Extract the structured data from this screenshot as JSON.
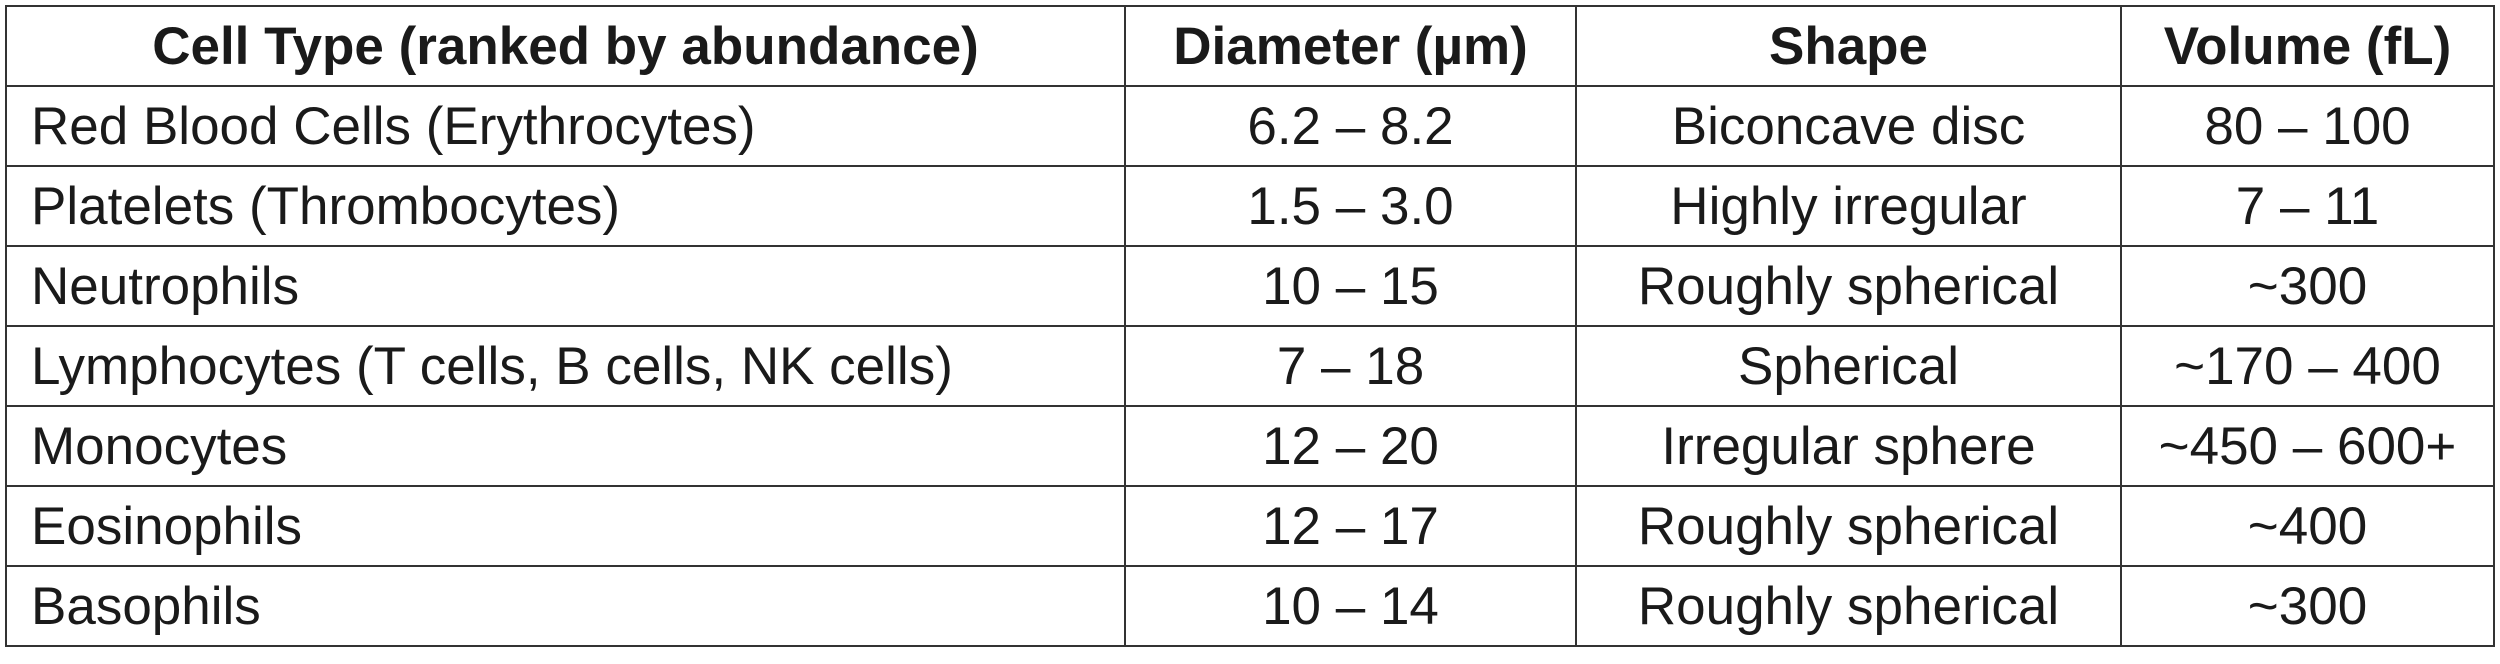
{
  "table": {
    "header": [
      "Cell Type (ranked by abundance)",
      "Diameter (µm)",
      "Shape",
      "Volume (fL)"
    ],
    "rows": [
      [
        "Red Blood Cells (Erythrocytes)",
        "6.2 – 8.2",
        "Biconcave disc",
        "80 – 100"
      ],
      [
        "Platelets (Thrombocytes)",
        "1.5 – 3.0",
        "Highly irregular",
        "7 – 11"
      ],
      [
        "Neutrophils",
        "10 – 15",
        "Roughly spherical",
        "~300"
      ],
      [
        "Lymphocytes (T cells, B cells, NK cells)",
        "7 – 18",
        "Spherical",
        "~170 – 400"
      ],
      [
        "Monocytes",
        "12 – 20",
        "Irregular sphere",
        "~450 – 600+"
      ],
      [
        "Eosinophils",
        "12 – 17",
        "Roughly spherical",
        "~400"
      ],
      [
        "Basophils",
        "10 – 14",
        "Roughly spherical",
        "~300"
      ]
    ]
  }
}
